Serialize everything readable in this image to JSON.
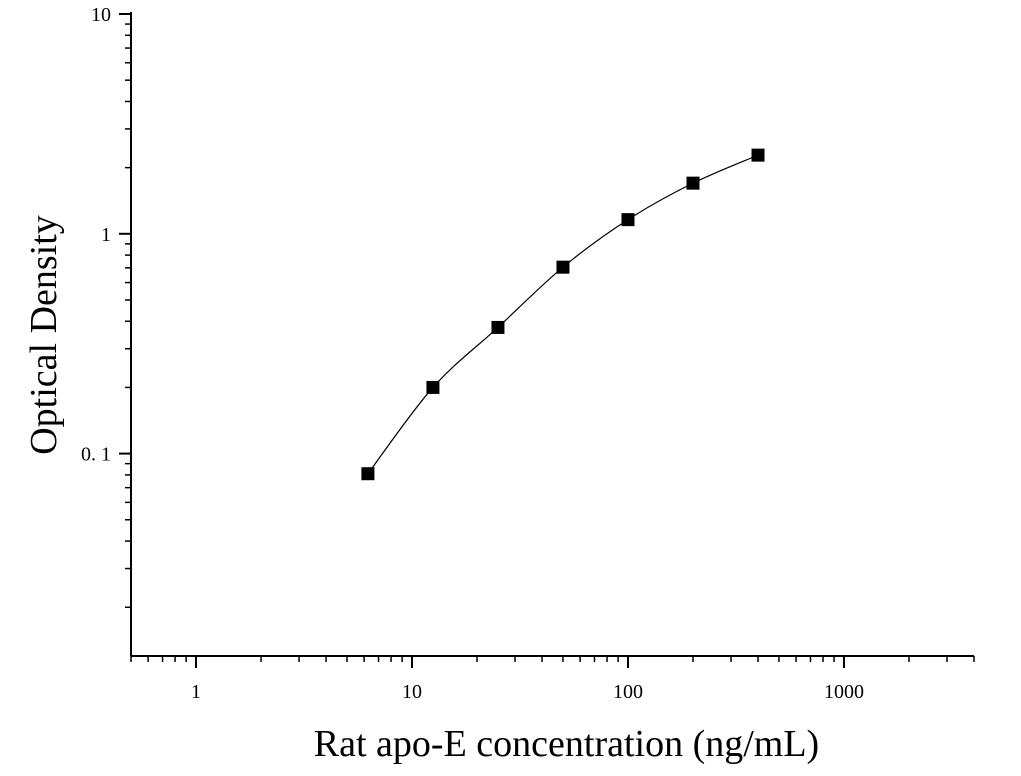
{
  "chart_data": {
    "type": "scatter",
    "title": "",
    "xlabel": "Rat apo-E concentration (ng/mL)",
    "ylabel": "Optical Density",
    "xscale": "log",
    "yscale": "log",
    "xlim": [
      0.5,
      4000
    ],
    "ylim": [
      0.012,
      10
    ],
    "x_ticks": [
      {
        "value": 1,
        "label": "1"
      },
      {
        "value": 10,
        "label": "10"
      },
      {
        "value": 100,
        "label": "100"
      },
      {
        "value": 1000,
        "label": "1000"
      }
    ],
    "y_ticks": [
      {
        "value": 10,
        "label": "10"
      },
      {
        "value": 1,
        "label": "1"
      },
      {
        "value": 0.1,
        "label": "0. 1"
      }
    ],
    "grid": false,
    "legend": "none",
    "series": [
      {
        "marker": "square",
        "color": "#000000",
        "fit_curve": true,
        "points": [
          {
            "x": 6.25,
            "y": 0.081
          },
          {
            "x": 12.5,
            "y": 0.2
          },
          {
            "x": 25,
            "y": 0.375
          },
          {
            "x": 50,
            "y": 0.705
          },
          {
            "x": 100,
            "y": 1.16
          },
          {
            "x": 200,
            "y": 1.7
          },
          {
            "x": 400,
            "y": 2.28
          }
        ]
      }
    ]
  }
}
